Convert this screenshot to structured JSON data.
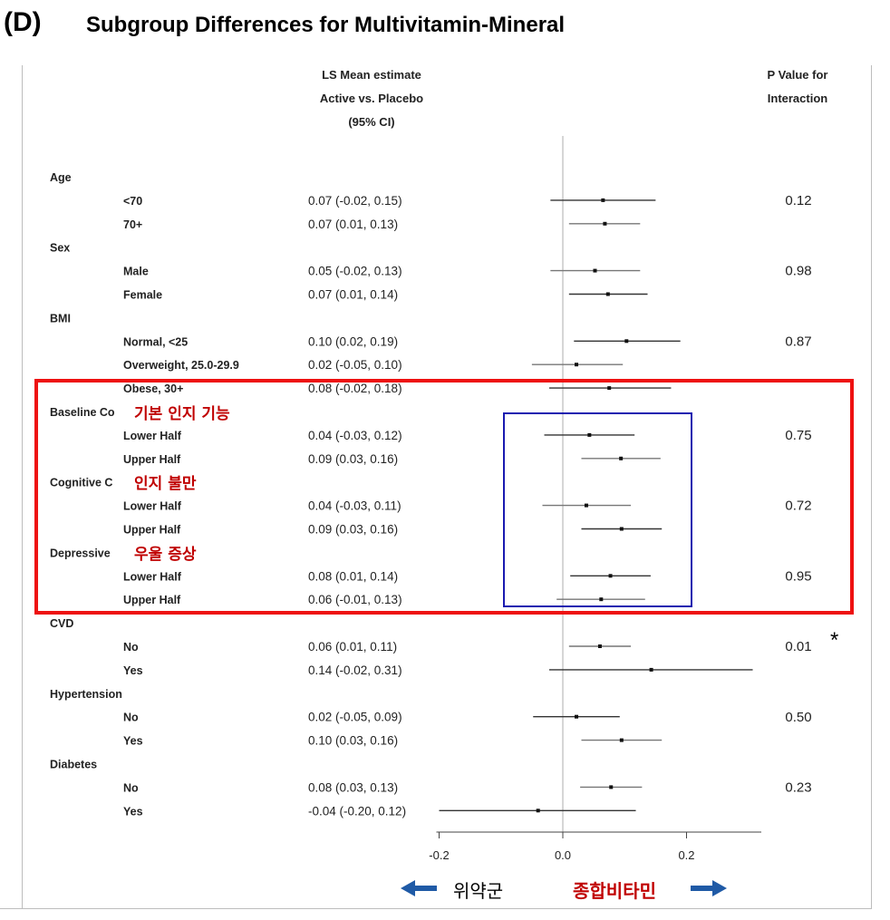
{
  "header": {
    "panel_label": "(D)",
    "title": "Subgroup Differences for Multivitamin-Mineral",
    "est_header": [
      "LS Mean estimate",
      "Active vs. Placebo",
      "(95% CI)"
    ],
    "p_header": [
      "P Value for",
      "Interaction"
    ]
  },
  "chart_data": {
    "type": "forest",
    "xlim": [
      -0.2,
      0.3
    ],
    "xticks": [
      -0.2,
      0.0,
      0.2
    ],
    "xtick_labels": [
      "-0.2",
      "0.0",
      "0.2"
    ],
    "reference_line": 0,
    "rows": [
      {
        "kind": "group",
        "label": "Age"
      },
      {
        "kind": "sub",
        "label": "<70",
        "text": "0.07 (-0.02, 0.15)",
        "est": 0.065,
        "lo": -0.02,
        "hi": 0.15
      },
      {
        "kind": "sub",
        "label": "70+",
        "text": "0.07 (0.01, 0.13)",
        "est": 0.068,
        "lo": 0.01,
        "hi": 0.125
      },
      {
        "kind": "group",
        "label": "Sex"
      },
      {
        "kind": "sub",
        "label": "Male",
        "text": "0.05 (-0.02, 0.13)",
        "est": 0.052,
        "lo": -0.02,
        "hi": 0.125
      },
      {
        "kind": "sub",
        "label": "Female",
        "text": "0.07 (0.01, 0.14)",
        "est": 0.073,
        "lo": 0.01,
        "hi": 0.137
      },
      {
        "kind": "group",
        "label": "BMI"
      },
      {
        "kind": "sub",
        "label": "Normal, <25",
        "text": "0.10 (0.02, 0.19)",
        "est": 0.103,
        "lo": 0.018,
        "hi": 0.19
      },
      {
        "kind": "sub",
        "label": "Overweight, 25.0-29.9",
        "text": "0.02 (-0.05, 0.10)",
        "est": 0.022,
        "lo": -0.05,
        "hi": 0.097
      },
      {
        "kind": "sub",
        "label": "Obese, 30+",
        "text": "0.08 (-0.02, 0.18)",
        "est": 0.075,
        "lo": -0.022,
        "hi": 0.175
      },
      {
        "kind": "group",
        "label": "Baseline Co"
      },
      {
        "kind": "sub",
        "label": "Lower Half",
        "text": "0.04 (-0.03, 0.12)",
        "est": 0.043,
        "lo": -0.03,
        "hi": 0.116
      },
      {
        "kind": "sub",
        "label": "Upper Half",
        "text": "0.09 (0.03, 0.16)",
        "est": 0.094,
        "lo": 0.03,
        "hi": 0.158
      },
      {
        "kind": "group",
        "label": "Cognitive C"
      },
      {
        "kind": "sub",
        "label": "Lower Half",
        "text": "0.04 (-0.03, 0.11)",
        "est": 0.038,
        "lo": -0.033,
        "hi": 0.11
      },
      {
        "kind": "sub",
        "label": "Upper Half",
        "text": "0.09 (0.03, 0.16)",
        "est": 0.095,
        "lo": 0.03,
        "hi": 0.16
      },
      {
        "kind": "group",
        "label": "Depressive"
      },
      {
        "kind": "sub",
        "label": "Lower Half",
        "text": "0.08 (0.01, 0.14)",
        "est": 0.077,
        "lo": 0.012,
        "hi": 0.142
      },
      {
        "kind": "sub",
        "label": "Upper Half",
        "text": "0.06 (-0.01, 0.13)",
        "est": 0.062,
        "lo": -0.01,
        "hi": 0.133
      },
      {
        "kind": "group",
        "label": "CVD"
      },
      {
        "kind": "sub",
        "label": "No",
        "text": "0.06 (0.01, 0.11)",
        "est": 0.06,
        "lo": 0.01,
        "hi": 0.11
      },
      {
        "kind": "sub",
        "label": "Yes",
        "text": "0.14 (-0.02, 0.31)",
        "est": 0.143,
        "lo": -0.022,
        "hi": 0.307
      },
      {
        "kind": "group",
        "label": "Hypertension"
      },
      {
        "kind": "sub",
        "label": "No",
        "text": "0.02 (-0.05, 0.09)",
        "est": 0.022,
        "lo": -0.048,
        "hi": 0.092
      },
      {
        "kind": "sub",
        "label": "Yes",
        "text": "0.10 (0.03, 0.16)",
        "est": 0.095,
        "lo": 0.03,
        "hi": 0.16
      },
      {
        "kind": "group",
        "label": "Diabetes"
      },
      {
        "kind": "sub",
        "label": "No",
        "text": "0.08 (0.03, 0.13)",
        "est": 0.078,
        "lo": 0.028,
        "hi": 0.128
      },
      {
        "kind": "sub",
        "label": "Yes",
        "text": "-0.04 (-0.20, 0.12)",
        "est": -0.04,
        "lo": -0.2,
        "hi": 0.118
      }
    ],
    "p_values": [
      {
        "group": "Age",
        "value": "0.12"
      },
      {
        "group": "Sex",
        "value": "0.98"
      },
      {
        "group": "BMI",
        "value": "0.87"
      },
      {
        "group": "Baseline Co",
        "value": "0.75"
      },
      {
        "group": "Cognitive C",
        "value": "0.72"
      },
      {
        "group": "Depressive",
        "value": "0.95"
      },
      {
        "group": "CVD",
        "value": "0.01"
      },
      {
        "group": "Hypertension",
        "value": "0.50"
      },
      {
        "group": "Diabetes",
        "value": "0.23"
      }
    ]
  },
  "annotations": {
    "baseline_cognition": "기본 인지 기능",
    "cognitive_complaint": "인지 불만",
    "depressive": "우울 증상",
    "significance_mark": "*",
    "left_arrow_label": "위약군",
    "right_arrow_label": "종합비타민"
  },
  "colors": {
    "red_box": "#ee1111",
    "blue_box": "#1a1ab0",
    "annotation_red": "#c00000",
    "arrow_blue": "#1f5aa6"
  }
}
